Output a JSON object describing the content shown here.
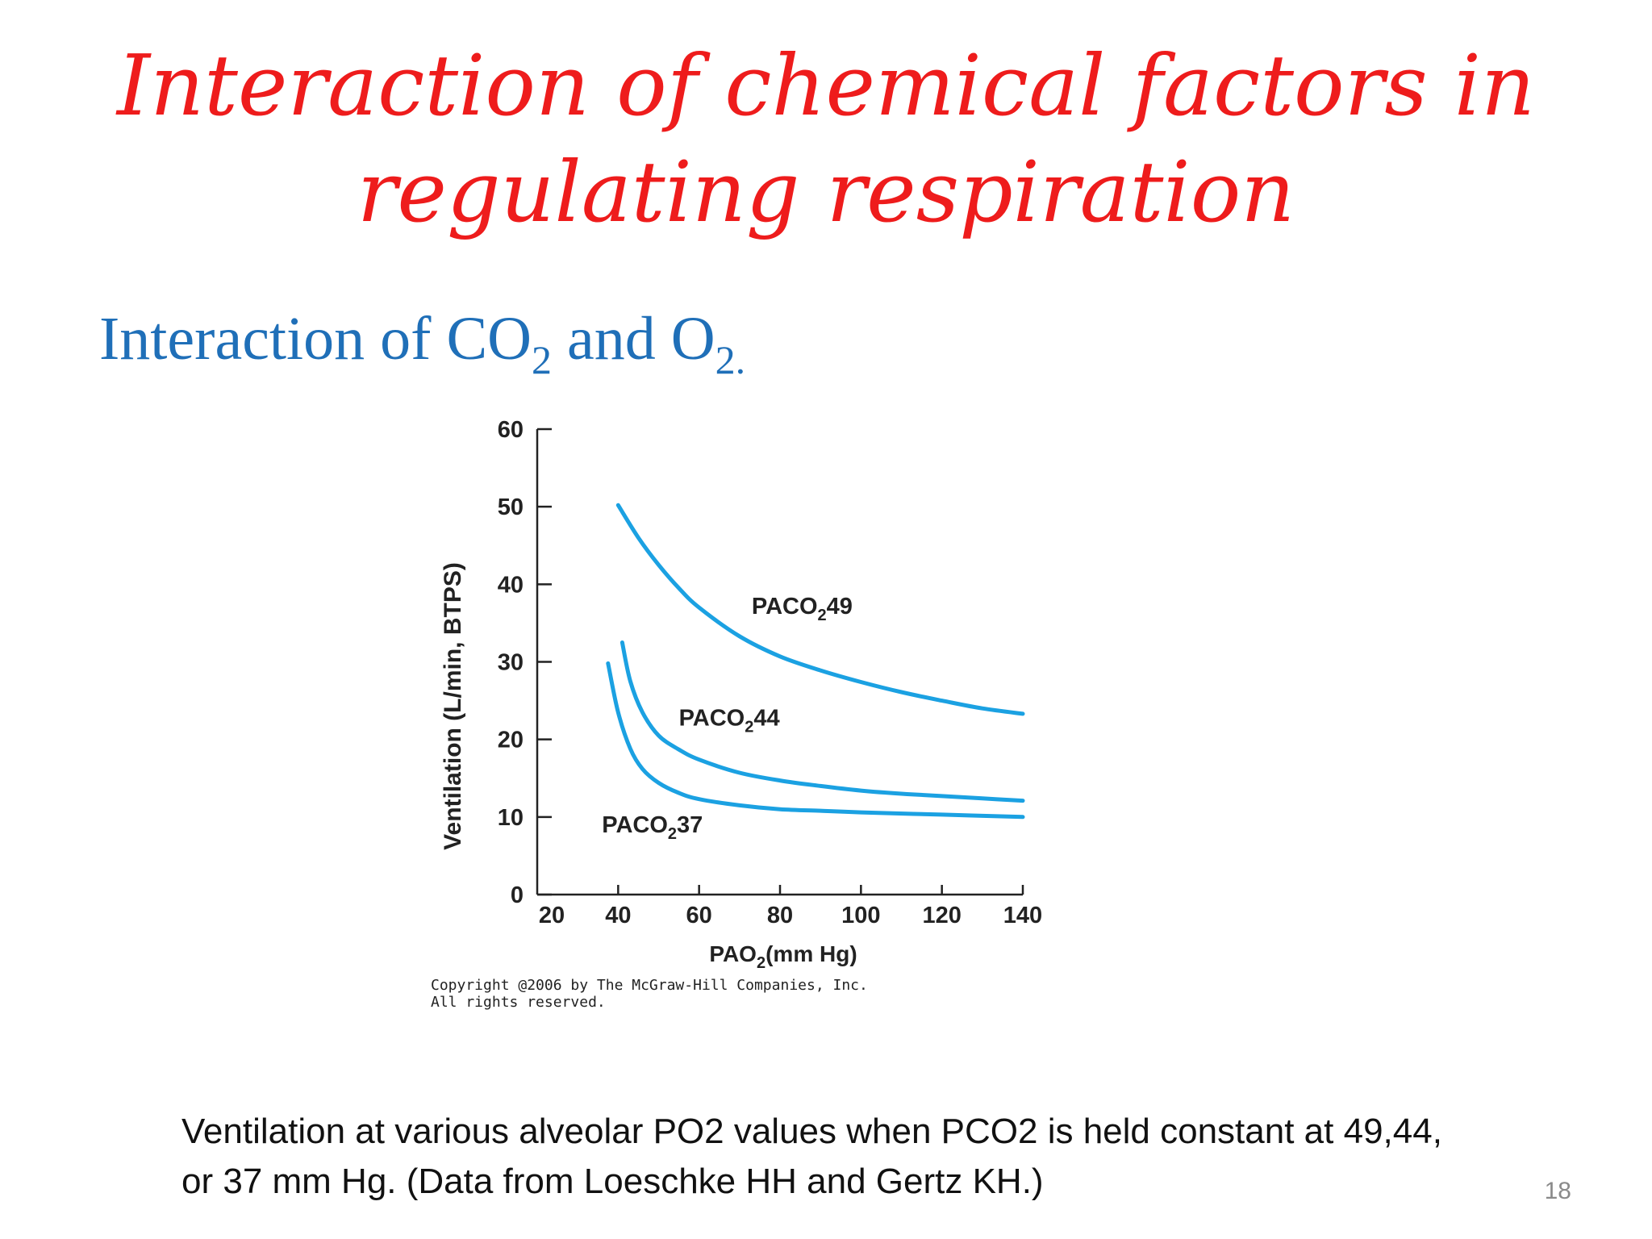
{
  "slide": {
    "title_line1": "Interaction of chemical factors in",
    "title_line2": "regulating respiration",
    "subtitle_pre": "Interaction of CO",
    "subtitle_sub1": "2",
    "subtitle_mid": " and O",
    "subtitle_sub2": "2.",
    "caption_line1": "Ventilation at various alveolar PO2 values when PCO2 is held constant at 49,44,",
    "caption_line2": "or 37 mm Hg. (Data from Loeschke HH and Gertz KH.)",
    "page_number": "18"
  },
  "colors": {
    "title": "#ee1c1c",
    "subtitle": "#1f6fb8",
    "curve": "#1ba1e2",
    "axis": "#222222"
  },
  "chart_data": {
    "type": "line",
    "xlabel_main": "PAO",
    "xlabel_sub": "2",
    "xlabel_unit": "(mm Hg)",
    "ylabel": "Ventilation (L/min, BTPS)",
    "xlim": [
      20,
      140
    ],
    "ylim": [
      0,
      60
    ],
    "x_ticks": [
      20,
      40,
      60,
      80,
      100,
      120,
      140
    ],
    "y_ticks": [
      0,
      10,
      20,
      30,
      40,
      50,
      60
    ],
    "copyright_line1": "Copyright @2006 by The McGraw-Hill Companies, Inc.",
    "copyright_line2": "All rights reserved.",
    "series": [
      {
        "name": "PACO249",
        "label_main": "PACO",
        "label_sub": "2",
        "label_num": "49",
        "x": [
          40,
          45,
          50,
          55,
          60,
          70,
          80,
          90,
          100,
          110,
          120,
          130,
          140
        ],
        "y": [
          50.2,
          46.0,
          42.5,
          39.5,
          37.0,
          33.3,
          30.7,
          28.9,
          27.4,
          26.1,
          25.0,
          24.0,
          23.3
        ]
      },
      {
        "name": "PACO244",
        "label_main": "PACO",
        "label_sub": "2",
        "label_num": "44",
        "x": [
          41,
          43,
          46,
          50,
          55,
          60,
          70,
          80,
          90,
          100,
          110,
          120,
          130,
          140
        ],
        "y": [
          32.5,
          27.5,
          23.5,
          20.5,
          18.7,
          17.4,
          15.7,
          14.7,
          14.0,
          13.4,
          13.0,
          12.7,
          12.4,
          12.1
        ]
      },
      {
        "name": "PACO237",
        "label_main": "PACO",
        "label_sub": "2",
        "label_num": "37",
        "x": [
          37.5,
          40,
          43,
          46,
          50,
          55,
          60,
          70,
          80,
          90,
          100,
          120,
          140
        ],
        "y": [
          29.8,
          23.5,
          18.8,
          16.2,
          14.4,
          13.1,
          12.3,
          11.5,
          11.0,
          10.8,
          10.6,
          10.3,
          10.0
        ]
      }
    ]
  }
}
